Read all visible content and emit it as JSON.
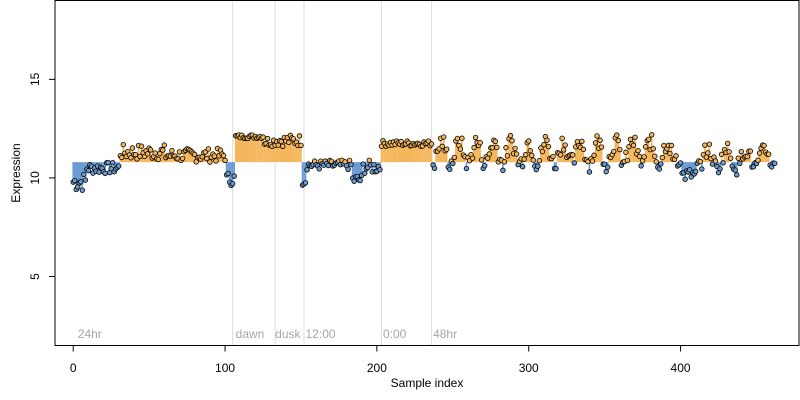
{
  "chart_data": {
    "type": "scatter",
    "xlabel": "Sample index",
    "ylabel": "Expression",
    "xlim": [
      -12,
      478
    ],
    "ylim": [
      1.5,
      19
    ],
    "xticks": [
      0,
      100,
      200,
      300,
      400
    ],
    "yticks": [
      5,
      10,
      15
    ],
    "grid": false,
    "legend": "none",
    "colors": {
      "high": "#f5b65b",
      "low": "#6c9bd2",
      "point_edge": "#000000",
      "divider": "#dcdcdc",
      "section_text": "#a6a6a6"
    },
    "n_points": 463,
    "section_dividers": [
      105,
      133,
      152,
      203,
      236
    ],
    "section_labels": [
      {
        "text": "24hr",
        "x": 3
      },
      {
        "text": "dawn",
        "x": 107
      },
      {
        "text": "dusk",
        "x": 133
      },
      {
        "text": "12:00",
        "x": 153
      },
      {
        "text": "0:00",
        "x": 204
      },
      {
        "text": "48hr",
        "x": 237
      }
    ],
    "segments": [
      {
        "x": [
          0,
          8
        ],
        "y": [
          9.3,
          10.3
        ]
      },
      {
        "x": [
          9,
          30
        ],
        "y": [
          10.2,
          10.8
        ]
      },
      {
        "x": [
          31,
          60
        ],
        "y": [
          10.9,
          11.7
        ]
      },
      {
        "x": [
          61,
          100
        ],
        "y": [
          10.8,
          11.5
        ]
      },
      {
        "x": [
          101,
          106
        ],
        "y": [
          9.6,
          10.3
        ]
      },
      {
        "x": [
          107,
          125
        ],
        "y": [
          12.0,
          12.2
        ]
      },
      {
        "x": [
          126,
          132
        ],
        "y": [
          11.6,
          12.1
        ]
      },
      {
        "x": [
          133,
          150
        ],
        "y": [
          11.6,
          12.2
        ]
      },
      {
        "x": [
          151,
          153
        ],
        "y": [
          9.6,
          10.1
        ]
      },
      {
        "x": [
          154,
          183
        ],
        "y": [
          10.4,
          10.9
        ]
      },
      {
        "x": [
          184,
          190
        ],
        "y": [
          9.6,
          10.2
        ]
      },
      {
        "x": [
          191,
          202
        ],
        "y": [
          10.2,
          10.9
        ]
      },
      {
        "x": [
          203,
          236
        ],
        "y": [
          11.6,
          11.9
        ]
      },
      {
        "x": [
          237,
          400
        ],
        "y": [
          10.6,
          11.9
        ]
      },
      {
        "x": [
          401,
          410
        ],
        "y": [
          9.8,
          10.5
        ]
      },
      {
        "x": [
          411,
          462
        ],
        "y": [
          10.6,
          11.4
        ]
      }
    ],
    "baseline": 10.8
  }
}
